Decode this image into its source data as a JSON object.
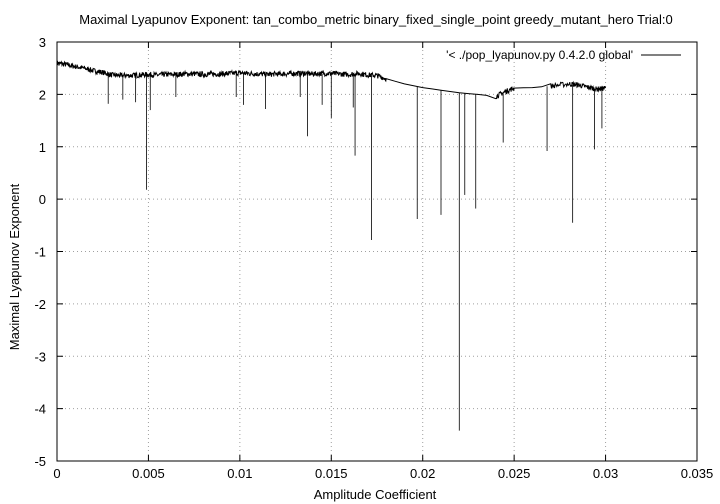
{
  "chart_data": {
    "type": "line",
    "title": "Maximal Lyapunov Exponent: tan_combo_metric binary_fixed_single_point greedy_mutant_hero Trial:0",
    "xlabel": "Amplitude Coefficient",
    "ylabel": "Maximal Lyapunov Exponent",
    "xlim": [
      0,
      0.035
    ],
    "ylim": [
      -5,
      3
    ],
    "x_ticks": [
      0,
      0.005,
      0.01,
      0.015,
      0.02,
      0.025,
      0.03,
      0.035
    ],
    "x_tick_labels": [
      "0",
      "0.005",
      "0.01",
      "0.015",
      "0.02",
      "0.025",
      "0.03",
      "0.035"
    ],
    "y_ticks": [
      -5,
      -4,
      -3,
      -2,
      -1,
      0,
      1,
      2,
      3
    ],
    "y_tick_labels": [
      "-5",
      "-4",
      "-3",
      "-2",
      "-1",
      "0",
      "1",
      "2",
      "3"
    ],
    "grid": true,
    "legend_position": "top-right",
    "series": [
      {
        "name": "'< ./pop_lyapunov.py 0.4.2.0 global'",
        "color": "#000000",
        "x": [
          0,
          0.0005,
          0.001,
          0.0015,
          0.002,
          0.0025,
          0.003,
          0.0035,
          0.004,
          0.0045,
          0.005,
          0.0055,
          0.006,
          0.0065,
          0.007,
          0.0075,
          0.008,
          0.0085,
          0.009,
          0.0095,
          0.01,
          0.0105,
          0.011,
          0.0115,
          0.012,
          0.0125,
          0.013,
          0.0135,
          0.014,
          0.0145,
          0.015,
          0.0155,
          0.016,
          0.0165,
          0.017,
          0.0175,
          0.018,
          0.019,
          0.02,
          0.021,
          0.022,
          0.023,
          0.024,
          0.0245,
          0.025,
          0.026,
          0.027,
          0.028,
          0.0285,
          0.029,
          0.0295,
          0.03
        ],
        "y": [
          2.6,
          2.57,
          2.53,
          2.5,
          2.45,
          2.42,
          2.37,
          2.36,
          2.36,
          2.37,
          2.38,
          2.37,
          2.38,
          2.38,
          2.39,
          2.39,
          2.38,
          2.39,
          2.39,
          2.4,
          2.41,
          2.4,
          2.39,
          2.38,
          2.39,
          2.39,
          2.4,
          2.4,
          2.39,
          2.4,
          2.4,
          2.39,
          2.38,
          2.4,
          2.37,
          2.36,
          2.3,
          2.2,
          2.13,
          2.08,
          2.03,
          2.0,
          1.96,
          2.05,
          2.12,
          2.13,
          2.16,
          2.2,
          2.18,
          2.14,
          2.1,
          2.12
        ]
      }
    ],
    "downward_spikes": [
      {
        "x": 0.0028,
        "y": 1.82
      },
      {
        "x": 0.0036,
        "y": 1.9
      },
      {
        "x": 0.0043,
        "y": 1.85
      },
      {
        "x": 0.0049,
        "y": 0.18
      },
      {
        "x": 0.0051,
        "y": 1.7
      },
      {
        "x": 0.0065,
        "y": 1.95
      },
      {
        "x": 0.0098,
        "y": 1.95
      },
      {
        "x": 0.0102,
        "y": 1.8
      },
      {
        "x": 0.0114,
        "y": 1.72
      },
      {
        "x": 0.0133,
        "y": 1.95
      },
      {
        "x": 0.0137,
        "y": 1.2
      },
      {
        "x": 0.0145,
        "y": 1.8
      },
      {
        "x": 0.015,
        "y": 1.55
      },
      {
        "x": 0.0162,
        "y": 1.75
      },
      {
        "x": 0.0163,
        "y": 0.83
      },
      {
        "x": 0.0172,
        "y": -0.78
      },
      {
        "x": 0.0197,
        "y": -0.38
      },
      {
        "x": 0.021,
        "y": -0.3
      },
      {
        "x": 0.022,
        "y": -4.42
      },
      {
        "x": 0.0223,
        "y": 0.08
      },
      {
        "x": 0.0229,
        "y": -0.18
      },
      {
        "x": 0.0244,
        "y": 1.08
      },
      {
        "x": 0.0268,
        "y": 0.92
      },
      {
        "x": 0.0282,
        "y": -0.45
      },
      {
        "x": 0.0294,
        "y": 0.95
      },
      {
        "x": 0.0298,
        "y": 1.35
      }
    ]
  }
}
